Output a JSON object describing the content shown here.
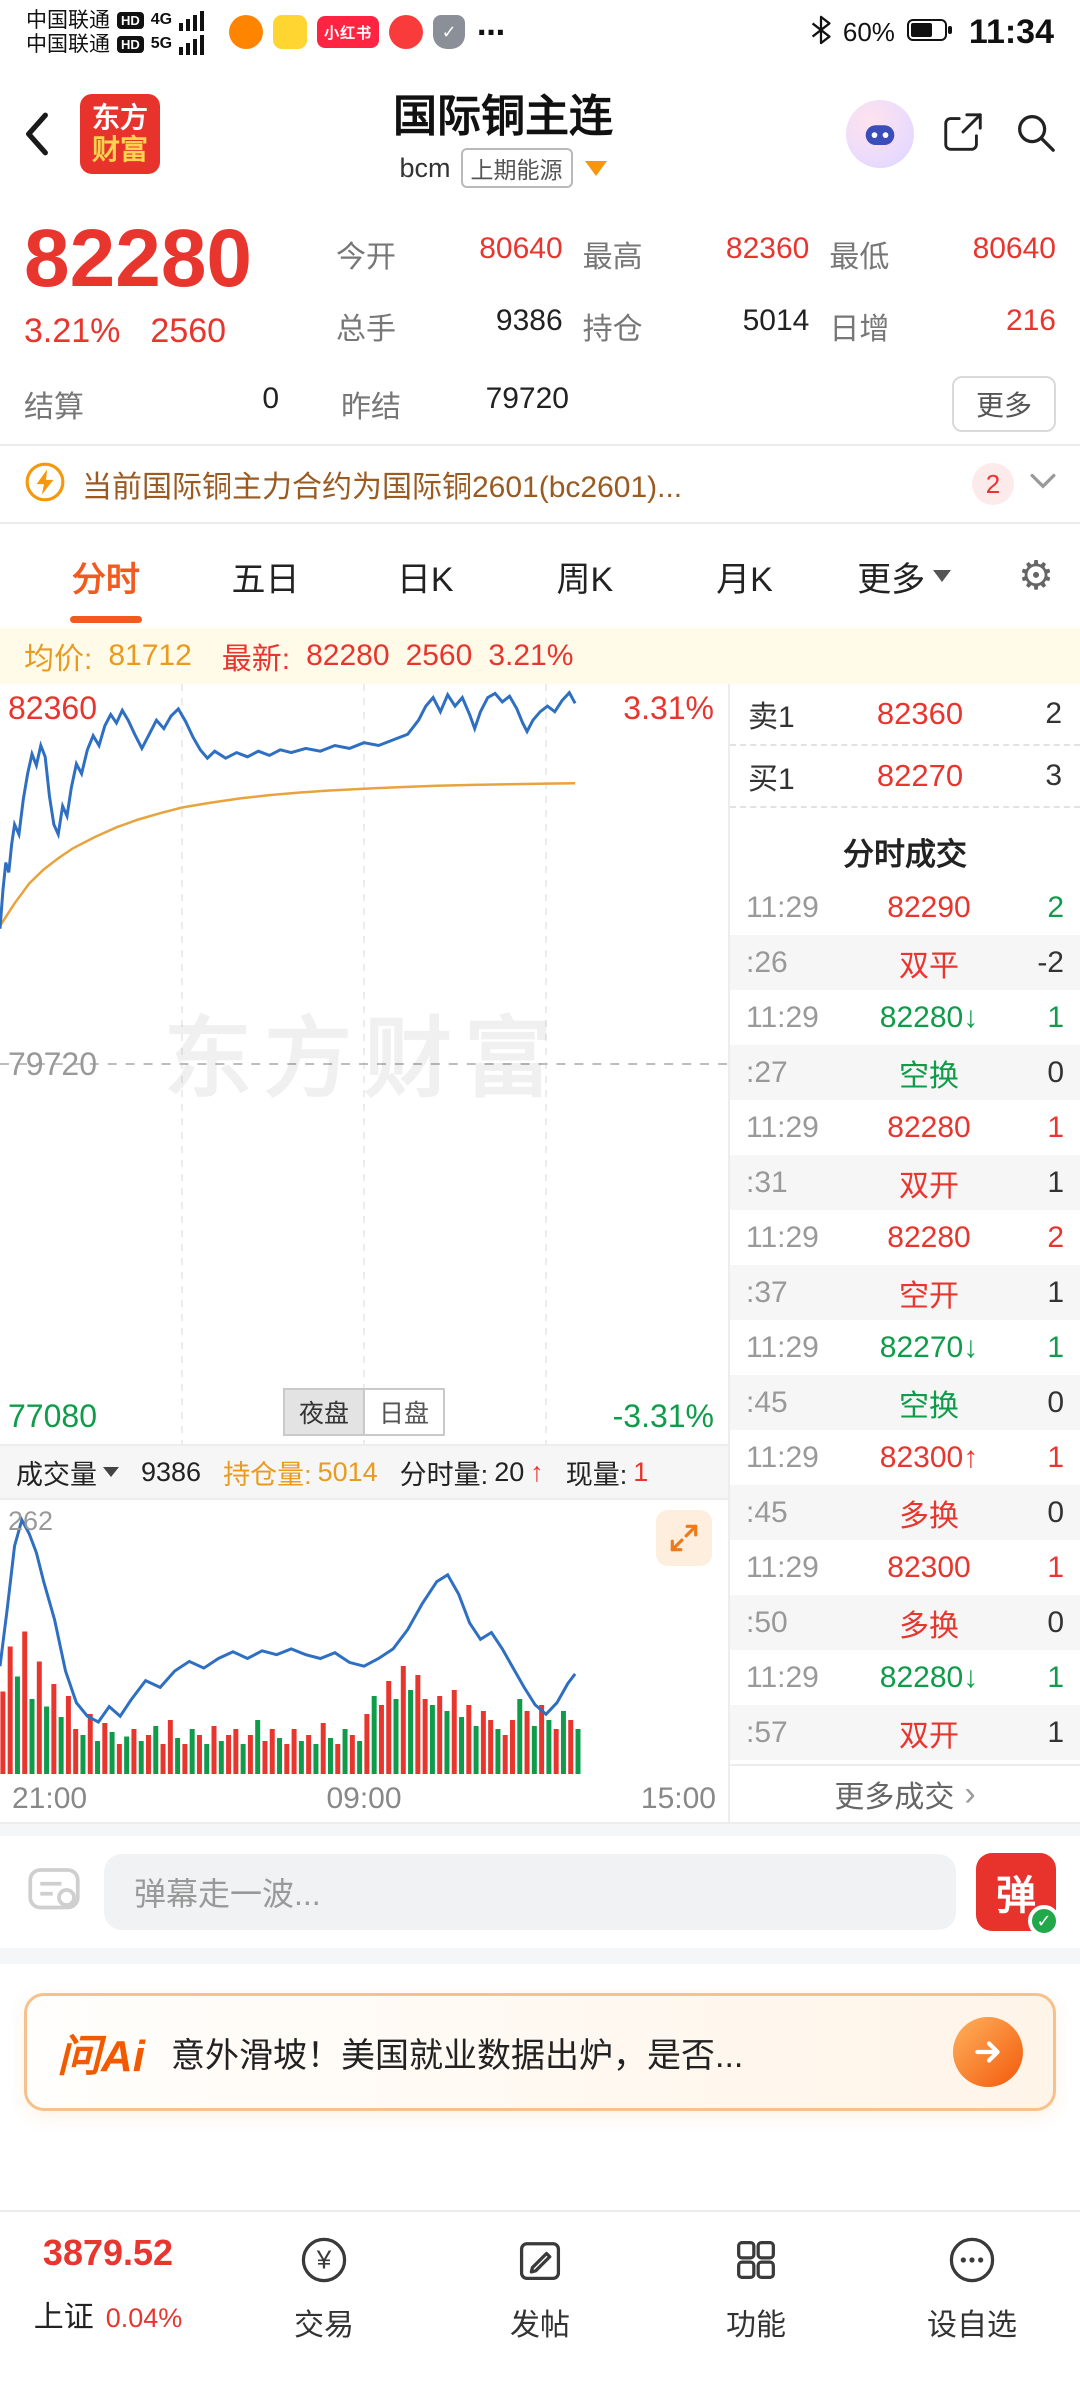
{
  "colors": {
    "red": "#e8352e",
    "green": "#0f9c4a",
    "orange": "#f5980c",
    "blue": "#2e6fc2"
  },
  "status_bar": {
    "carrier": "中国联通",
    "hd": "HD",
    "net_4g": "4G",
    "net_5g": "5G",
    "xiaohongshu_label": "小红书",
    "more": "⋯",
    "battery": "60%",
    "time": "11:34"
  },
  "header": {
    "logo_line1": "东方",
    "logo_line2": "财富",
    "title": "国际铜主连",
    "code": "bcm",
    "exchange": "上期能源"
  },
  "quote": {
    "price": "82280",
    "change_pct": "3.21%",
    "change": "2560",
    "open_label": "今开",
    "open": "80640",
    "high_label": "最高",
    "high": "82360",
    "low_label": "最低",
    "low": "80640",
    "vol_label": "总手",
    "vol": "9386",
    "oi_label": "持仓",
    "oi": "5014",
    "inc_label": "日增",
    "inc": "216",
    "settle_label": "结算",
    "settle": "0",
    "prev_label": "昨结",
    "prev": "79720",
    "more": "更多"
  },
  "notice": {
    "text": "当前国际铜主力合约为国际铜2601(bc2601)...",
    "badge": "2"
  },
  "tabs": {
    "items": [
      {
        "label": "分时"
      },
      {
        "label": "五日"
      },
      {
        "label": "日K"
      },
      {
        "label": "周K"
      },
      {
        "label": "月K"
      },
      {
        "label": "更多"
      }
    ]
  },
  "avg_strip": {
    "avg_label": "均价:",
    "avg": "81712",
    "latest_label": "最新:",
    "latest": "82280",
    "change": "2560",
    "change_pct": "3.21%"
  },
  "chart_ui": {
    "watermark": "东方财富",
    "night": "夜盘",
    "day": "日盘",
    "vol_label": "成交量",
    "vol": "9386",
    "oi_label": "持仓量:",
    "oi": "5014",
    "min_label": "分时量:",
    "min": "20",
    "min_arrow": "↑",
    "cur_label": "现量:",
    "cur": "1",
    "vol_max_label": "262"
  },
  "chart_data": {
    "type": "line",
    "title": "国际铜主连 分时",
    "y_axis": {
      "top": 82360,
      "mid": 79720,
      "bottom": 77080,
      "top_label": "82360",
      "mid_label": "79720",
      "bottom_label": "77080",
      "top_pct": "3.31%",
      "bottom_pct": "-3.31%"
    },
    "x_labels": [
      "21:00",
      "09:00",
      "15:00"
    ],
    "series": [
      {
        "name": "price",
        "color": "#2e6fc2",
        "points": [
          [
            0.0,
            80680
          ],
          [
            0.004,
            80950
          ],
          [
            0.008,
            81150
          ],
          [
            0.012,
            81080
          ],
          [
            0.016,
            81280
          ],
          [
            0.02,
            81420
          ],
          [
            0.026,
            81350
          ],
          [
            0.032,
            81600
          ],
          [
            0.038,
            81780
          ],
          [
            0.044,
            81920
          ],
          [
            0.05,
            81840
          ],
          [
            0.056,
            81980
          ],
          [
            0.062,
            81900
          ],
          [
            0.068,
            81620
          ],
          [
            0.074,
            81420
          ],
          [
            0.08,
            81350
          ],
          [
            0.086,
            81550
          ],
          [
            0.092,
            81480
          ],
          [
            0.098,
            81680
          ],
          [
            0.105,
            81850
          ],
          [
            0.112,
            81780
          ],
          [
            0.12,
            81950
          ],
          [
            0.128,
            82050
          ],
          [
            0.136,
            81980
          ],
          [
            0.144,
            82120
          ],
          [
            0.152,
            82200
          ],
          [
            0.16,
            82140
          ],
          [
            0.168,
            82230
          ],
          [
            0.176,
            82160
          ],
          [
            0.185,
            82060
          ],
          [
            0.195,
            81960
          ],
          [
            0.205,
            82060
          ],
          [
            0.215,
            82160
          ],
          [
            0.225,
            82100
          ],
          [
            0.235,
            82190
          ],
          [
            0.245,
            82240
          ],
          [
            0.255,
            82150
          ],
          [
            0.265,
            82040
          ],
          [
            0.275,
            81950
          ],
          [
            0.285,
            81890
          ],
          [
            0.295,
            81940
          ],
          [
            0.31,
            81890
          ],
          [
            0.325,
            81930
          ],
          [
            0.34,
            81900
          ],
          [
            0.355,
            81940
          ],
          [
            0.37,
            81910
          ],
          [
            0.385,
            81950
          ],
          [
            0.4,
            81930
          ],
          [
            0.42,
            81960
          ],
          [
            0.44,
            81940
          ],
          [
            0.46,
            81980
          ],
          [
            0.48,
            81960
          ],
          [
            0.5,
            82000
          ],
          [
            0.52,
            81980
          ],
          [
            0.54,
            82020
          ],
          [
            0.56,
            82060
          ],
          [
            0.575,
            82160
          ],
          [
            0.585,
            82260
          ],
          [
            0.595,
            82320
          ],
          [
            0.605,
            82220
          ],
          [
            0.615,
            82340
          ],
          [
            0.625,
            82260
          ],
          [
            0.635,
            82320
          ],
          [
            0.645,
            82200
          ],
          [
            0.652,
            82100
          ],
          [
            0.66,
            82220
          ],
          [
            0.67,
            82320
          ],
          [
            0.68,
            82350
          ],
          [
            0.69,
            82290
          ],
          [
            0.7,
            82330
          ],
          [
            0.71,
            82240
          ],
          [
            0.718,
            82140
          ],
          [
            0.724,
            82080
          ],
          [
            0.732,
            82160
          ],
          [
            0.742,
            82220
          ],
          [
            0.752,
            82260
          ],
          [
            0.762,
            82220
          ],
          [
            0.772,
            82300
          ],
          [
            0.782,
            82355
          ],
          [
            0.79,
            82280
          ]
        ]
      },
      {
        "name": "average",
        "color": "#e8a33c",
        "points": [
          [
            0.0,
            80700
          ],
          [
            0.02,
            80860
          ],
          [
            0.04,
            81000
          ],
          [
            0.06,
            81100
          ],
          [
            0.08,
            81180
          ],
          [
            0.1,
            81250
          ],
          [
            0.13,
            81330
          ],
          [
            0.16,
            81400
          ],
          [
            0.19,
            81455
          ],
          [
            0.22,
            81500
          ],
          [
            0.25,
            81540
          ],
          [
            0.29,
            81575
          ],
          [
            0.33,
            81605
          ],
          [
            0.37,
            81628
          ],
          [
            0.41,
            81646
          ],
          [
            0.45,
            81660
          ],
          [
            0.5,
            81674
          ],
          [
            0.55,
            81685
          ],
          [
            0.6,
            81694
          ],
          [
            0.65,
            81701
          ],
          [
            0.7,
            81706
          ],
          [
            0.75,
            81710
          ],
          [
            0.79,
            81712
          ]
        ]
      }
    ],
    "volume": {
      "max": 262,
      "line": [
        [
          0.0,
          110
        ],
        [
          0.01,
          170
        ],
        [
          0.02,
          235
        ],
        [
          0.03,
          262
        ],
        [
          0.04,
          248
        ],
        [
          0.05,
          228
        ],
        [
          0.06,
          198
        ],
        [
          0.075,
          158
        ],
        [
          0.09,
          105
        ],
        [
          0.105,
          72
        ],
        [
          0.12,
          58
        ],
        [
          0.135,
          52
        ],
        [
          0.15,
          68
        ],
        [
          0.165,
          58
        ],
        [
          0.18,
          75
        ],
        [
          0.2,
          95
        ],
        [
          0.22,
          88
        ],
        [
          0.24,
          105
        ],
        [
          0.26,
          115
        ],
        [
          0.28,
          108
        ],
        [
          0.3,
          118
        ],
        [
          0.32,
          125
        ],
        [
          0.34,
          118
        ],
        [
          0.36,
          126
        ],
        [
          0.38,
          122
        ],
        [
          0.4,
          128
        ],
        [
          0.42,
          122
        ],
        [
          0.44,
          118
        ],
        [
          0.46,
          124
        ],
        [
          0.48,
          114
        ],
        [
          0.5,
          110
        ],
        [
          0.52,
          118
        ],
        [
          0.54,
          128
        ],
        [
          0.56,
          148
        ],
        [
          0.58,
          175
        ],
        [
          0.6,
          198
        ],
        [
          0.615,
          205
        ],
        [
          0.63,
          185
        ],
        [
          0.645,
          155
        ],
        [
          0.66,
          138
        ],
        [
          0.675,
          145
        ],
        [
          0.69,
          128
        ],
        [
          0.705,
          108
        ],
        [
          0.72,
          88
        ],
        [
          0.735,
          70
        ],
        [
          0.75,
          60
        ],
        [
          0.765,
          72
        ],
        [
          0.78,
          92
        ],
        [
          0.79,
          102
        ]
      ],
      "bars": [
        [
          0.004,
          0.55,
          "r"
        ],
        [
          0.014,
          0.85,
          "r"
        ],
        [
          0.024,
          0.65,
          "g"
        ],
        [
          0.034,
          0.95,
          "r"
        ],
        [
          0.044,
          0.5,
          "g"
        ],
        [
          0.054,
          0.75,
          "r"
        ],
        [
          0.064,
          0.45,
          "g"
        ],
        [
          0.074,
          0.6,
          "r"
        ],
        [
          0.084,
          0.38,
          "g"
        ],
        [
          0.094,
          0.52,
          "r"
        ],
        [
          0.104,
          0.3,
          "r"
        ],
        [
          0.114,
          0.26,
          "g"
        ],
        [
          0.124,
          0.4,
          "r"
        ],
        [
          0.134,
          0.22,
          "g"
        ],
        [
          0.144,
          0.34,
          "r"
        ],
        [
          0.154,
          0.28,
          "g"
        ],
        [
          0.164,
          0.2,
          "r"
        ],
        [
          0.174,
          0.25,
          "g"
        ],
        [
          0.184,
          0.3,
          "r"
        ],
        [
          0.194,
          0.22,
          "g"
        ],
        [
          0.204,
          0.26,
          "r"
        ],
        [
          0.214,
          0.32,
          "g"
        ],
        [
          0.224,
          0.2,
          "r"
        ],
        [
          0.234,
          0.36,
          "r"
        ],
        [
          0.244,
          0.24,
          "g"
        ],
        [
          0.254,
          0.2,
          "r"
        ],
        [
          0.264,
          0.3,
          "g"
        ],
        [
          0.274,
          0.26,
          "r"
        ],
        [
          0.284,
          0.2,
          "g"
        ],
        [
          0.294,
          0.32,
          "r"
        ],
        [
          0.304,
          0.22,
          "g"
        ],
        [
          0.314,
          0.26,
          "r"
        ],
        [
          0.324,
          0.3,
          "r"
        ],
        [
          0.334,
          0.2,
          "g"
        ],
        [
          0.344,
          0.26,
          "r"
        ],
        [
          0.354,
          0.36,
          "g"
        ],
        [
          0.364,
          0.22,
          "r"
        ],
        [
          0.374,
          0.3,
          "r"
        ],
        [
          0.384,
          0.24,
          "g"
        ],
        [
          0.394,
          0.2,
          "r"
        ],
        [
          0.404,
          0.3,
          "r"
        ],
        [
          0.414,
          0.22,
          "g"
        ],
        [
          0.424,
          0.26,
          "r"
        ],
        [
          0.434,
          0.2,
          "g"
        ],
        [
          0.444,
          0.34,
          "r"
        ],
        [
          0.454,
          0.24,
          "g"
        ],
        [
          0.464,
          0.2,
          "r"
        ],
        [
          0.474,
          0.3,
          "g"
        ],
        [
          0.484,
          0.26,
          "r"
        ],
        [
          0.494,
          0.22,
          "g"
        ],
        [
          0.504,
          0.4,
          "r"
        ],
        [
          0.514,
          0.52,
          "g"
        ],
        [
          0.524,
          0.46,
          "r"
        ],
        [
          0.534,
          0.62,
          "r"
        ],
        [
          0.544,
          0.5,
          "g"
        ],
        [
          0.554,
          0.72,
          "r"
        ],
        [
          0.564,
          0.56,
          "g"
        ],
        [
          0.574,
          0.66,
          "r"
        ],
        [
          0.584,
          0.5,
          "r"
        ],
        [
          0.594,
          0.46,
          "g"
        ],
        [
          0.604,
          0.52,
          "r"
        ],
        [
          0.614,
          0.42,
          "g"
        ],
        [
          0.624,
          0.56,
          "r"
        ],
        [
          0.634,
          0.38,
          "g"
        ],
        [
          0.644,
          0.46,
          "r"
        ],
        [
          0.654,
          0.32,
          "g"
        ],
        [
          0.664,
          0.42,
          "r"
        ],
        [
          0.674,
          0.36,
          "r"
        ],
        [
          0.684,
          0.3,
          "g"
        ],
        [
          0.694,
          0.26,
          "r"
        ],
        [
          0.704,
          0.36,
          "r"
        ],
        [
          0.714,
          0.5,
          "g"
        ],
        [
          0.724,
          0.42,
          "r"
        ],
        [
          0.734,
          0.32,
          "g"
        ],
        [
          0.744,
          0.46,
          "r"
        ],
        [
          0.754,
          0.36,
          "g"
        ],
        [
          0.764,
          0.3,
          "r"
        ],
        [
          0.774,
          0.42,
          "g"
        ],
        [
          0.784,
          0.36,
          "r"
        ],
        [
          0.794,
          0.3,
          "g"
        ]
      ]
    }
  },
  "order_book": {
    "ask_label": "卖1",
    "ask_price": "82360",
    "ask_vol": "2",
    "bid_label": "买1",
    "bid_price": "82270",
    "bid_vol": "3"
  },
  "trades": {
    "title": "分时成交",
    "more": "更多成交",
    "more_chevron": "›",
    "rows": [
      {
        "time": "11:29",
        "text": "82290",
        "color": "red",
        "vol": "2",
        "vol_color": "green"
      },
      {
        "time": ":26",
        "text": "双平",
        "color": "red",
        "vol": "-2",
        "vol_color": "dark"
      },
      {
        "time": "11:29",
        "text": "82280↓",
        "color": "green",
        "vol": "1",
        "vol_color": "green"
      },
      {
        "time": ":27",
        "text": "空换",
        "color": "green",
        "vol": "0",
        "vol_color": "dark"
      },
      {
        "time": "11:29",
        "text": "82280",
        "color": "red",
        "vol": "1",
        "vol_color": "red"
      },
      {
        "time": ":31",
        "text": "双开",
        "color": "red",
        "vol": "1",
        "vol_color": "dark"
      },
      {
        "time": "11:29",
        "text": "82280",
        "color": "red",
        "vol": "2",
        "vol_color": "red"
      },
      {
        "time": ":37",
        "text": "空开",
        "color": "red",
        "vol": "1",
        "vol_color": "dark"
      },
      {
        "time": "11:29",
        "text": "82270↓",
        "color": "green",
        "vol": "1",
        "vol_color": "green"
      },
      {
        "time": ":45",
        "text": "空换",
        "color": "green",
        "vol": "0",
        "vol_color": "dark"
      },
      {
        "time": "11:29",
        "text": "82300↑",
        "color": "red",
        "vol": "1",
        "vol_color": "red"
      },
      {
        "time": ":45",
        "text": "多换",
        "color": "red",
        "vol": "0",
        "vol_color": "dark"
      },
      {
        "time": "11:29",
        "text": "82300",
        "color": "red",
        "vol": "1",
        "vol_color": "red"
      },
      {
        "time": ":50",
        "text": "多换",
        "color": "red",
        "vol": "0",
        "vol_color": "dark"
      },
      {
        "time": "11:29",
        "text": "82280↓",
        "color": "green",
        "vol": "1",
        "vol_color": "green"
      },
      {
        "time": ":57",
        "text": "双开",
        "color": "red",
        "vol": "1",
        "vol_color": "dark"
      }
    ]
  },
  "danmaku": {
    "placeholder": "弹幕走一波...",
    "send": "弹",
    "check": "✓"
  },
  "ai_banner": {
    "brand": "问Ai",
    "text": "意外滑坡！美国就业数据出炉，是否..."
  },
  "bottom_nav": {
    "index_value": "3879.52",
    "index_name": "上证",
    "index_change": "0.04%",
    "trade": "交易",
    "post": "发帖",
    "features": "功能",
    "watchlist": "设自选",
    "yuan": "¥"
  }
}
